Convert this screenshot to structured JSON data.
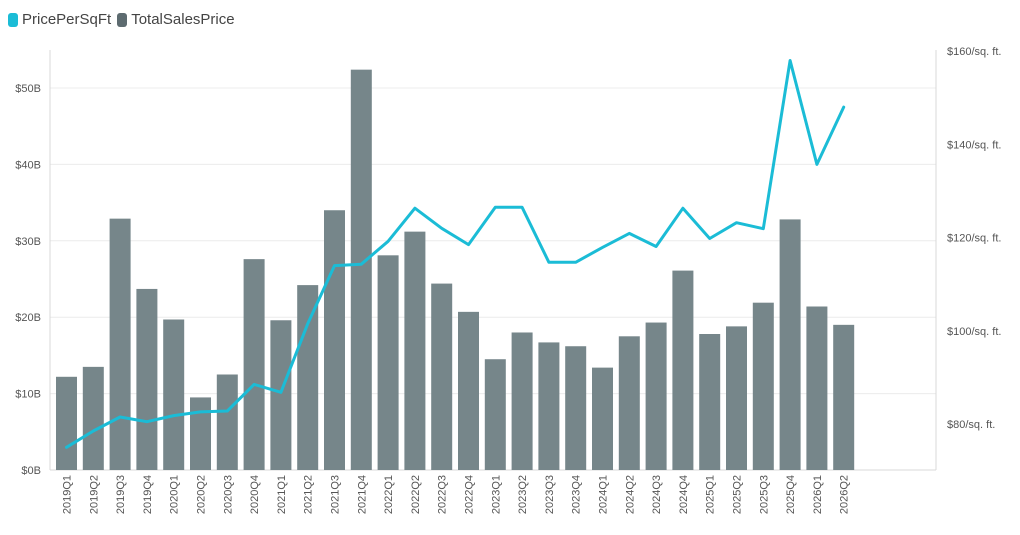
{
  "legend": {
    "items": [
      {
        "label": "PricePerSqFt",
        "color": "#1bbcd6"
      },
      {
        "label": "TotalSalesPrice",
        "color": "#5d6b70"
      }
    ]
  },
  "colors": {
    "bar": "#76868a",
    "line": "#1bbcd6",
    "grid": "#ececec",
    "axis": "#d8d8d8",
    "text": "#555555"
  },
  "chart_data": {
    "type": "bar",
    "categories": [
      "2019Q1",
      "2019Q2",
      "2019Q3",
      "2019Q4",
      "2020Q1",
      "2020Q2",
      "2020Q3",
      "2020Q4",
      "2021Q1",
      "2021Q2",
      "2021Q3",
      "2021Q4",
      "2022Q1",
      "2022Q2",
      "2022Q3",
      "2022Q4",
      "2023Q1",
      "2023Q2",
      "2023Q3",
      "2023Q4",
      "2024Q1",
      "2024Q2",
      "2024Q3",
      "2024Q4",
      "2025Q1",
      "2025Q2",
      "2025Q3",
      "2025Q4",
      "2026Q1",
      "2026Q2"
    ],
    "series": [
      {
        "name": "TotalSalesPrice",
        "type": "bar",
        "axis": "left",
        "values": [
          12.2,
          13.5,
          32.9,
          23.7,
          19.7,
          9.5,
          12.5,
          27.6,
          19.6,
          24.2,
          34.0,
          52.4,
          28.1,
          31.2,
          24.4,
          20.7,
          14.5,
          18.0,
          16.7,
          16.2,
          13.4,
          17.5,
          19.3,
          26.1,
          17.8,
          18.8,
          21.9,
          32.8,
          21.4,
          19.0
        ]
      },
      {
        "name": "PricePerSqFt",
        "type": "line",
        "axis": "right",
        "values": [
          75.0,
          78.5,
          81.5,
          80.5,
          81.8,
          82.6,
          82.8,
          88.5,
          86.8,
          101.5,
          114.0,
          114.3,
          119.2,
          126.3,
          122.0,
          118.5,
          126.5,
          126.5,
          114.7,
          114.7,
          117.9,
          120.9,
          118.1,
          126.3,
          119.8,
          123.2,
          121.9,
          158.0,
          135.7,
          148.0
        ]
      }
    ],
    "y_left": {
      "ticks": [
        "$0B",
        "$10B",
        "$20B",
        "$30B",
        "$40B",
        "$50B"
      ],
      "range": [
        0,
        55
      ]
    },
    "y_right": {
      "ticks": [
        "$80/sq. ft.",
        "$100/sq. ft.",
        "$120/sq. ft.",
        "$140/sq. ft.",
        "$160/sq. ft."
      ],
      "range": [
        70,
        160
      ]
    },
    "grid": true,
    "legend_position": "top-left"
  }
}
